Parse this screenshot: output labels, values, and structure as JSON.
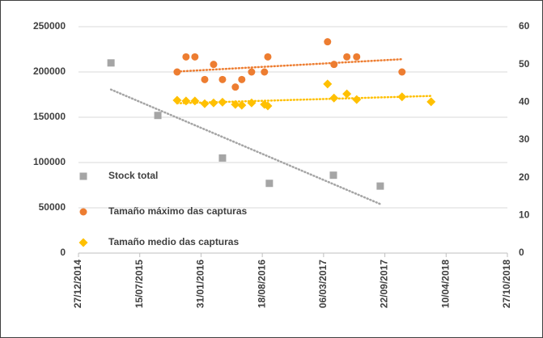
{
  "chart_data": {
    "type": "scatter",
    "xlim": [
      "2014-12-27",
      "2018-10-27"
    ],
    "xticks": [
      {
        "value": "2014-12-27",
        "label": "27/12/2014"
      },
      {
        "value": "2015-07-15",
        "label": "15/07/2015"
      },
      {
        "value": "2016-01-31",
        "label": "31/01/2016"
      },
      {
        "value": "2016-08-18",
        "label": "18/08/2016"
      },
      {
        "value": "2017-03-06",
        "label": "06/03/2017"
      },
      {
        "value": "2017-09-22",
        "label": "22/09/2017"
      },
      {
        "value": "2018-04-10",
        "label": "10/04/2018"
      },
      {
        "value": "2018-10-27",
        "label": "27/10/2018"
      }
    ],
    "ylim": [
      0,
      250000
    ],
    "yticks": [
      0,
      50000,
      100000,
      150000,
      200000,
      250000
    ],
    "y2lim": [
      0,
      60
    ],
    "y2ticks": [
      0,
      10,
      20,
      30,
      40,
      50,
      60
    ],
    "grid": true,
    "legend": "left",
    "trendline": true,
    "series": [
      {
        "name": "Stock total",
        "color": "#a5a5a5",
        "marker": "square",
        "x": [
          "2015-04-12",
          "2015-09-12",
          "2016-04-10",
          "2016-09-10",
          "2017-04-07",
          "2017-09-07"
        ],
        "values": [
          210000,
          152000,
          105000,
          77000,
          86000,
          74000
        ]
      },
      {
        "name": "Tamaño máximo das capturas",
        "color": "#ed7d31",
        "marker": "circle",
        "axis": "y2",
        "x": [
          "2015-11-14",
          "2015-12-13",
          "2016-01-11",
          "2016-02-12",
          "2016-03-12",
          "2016-04-10",
          "2016-05-22",
          "2016-06-12",
          "2016-07-14",
          "2016-08-25",
          "2016-09-05",
          "2017-03-19",
          "2017-04-09",
          "2017-05-21",
          "2017-06-22",
          "2017-11-17"
        ],
        "values": [
          48,
          52,
          52,
          46,
          50,
          46,
          44,
          46,
          48,
          48,
          52,
          56,
          50,
          52,
          52,
          48
        ]
      },
      {
        "name": "Tamaño medio das capturas",
        "color": "#ffc000",
        "marker": "diamond",
        "axis": "y2",
        "x": [
          "2015-11-14",
          "2015-12-13",
          "2016-01-11",
          "2016-02-12",
          "2016-03-12",
          "2016-04-10",
          "2016-05-22",
          "2016-06-12",
          "2016-07-14",
          "2016-08-25",
          "2016-09-05",
          "2017-03-19",
          "2017-04-09",
          "2017-05-21",
          "2017-06-22",
          "2017-11-17",
          "2018-02-20"
        ],
        "values": [
          40.5,
          40.3,
          40.3,
          39.6,
          39.8,
          40,
          39.4,
          39.2,
          39.8,
          39.4,
          39,
          44.8,
          41.1,
          42.2,
          40.7,
          41.4,
          40.1
        ]
      }
    ]
  }
}
